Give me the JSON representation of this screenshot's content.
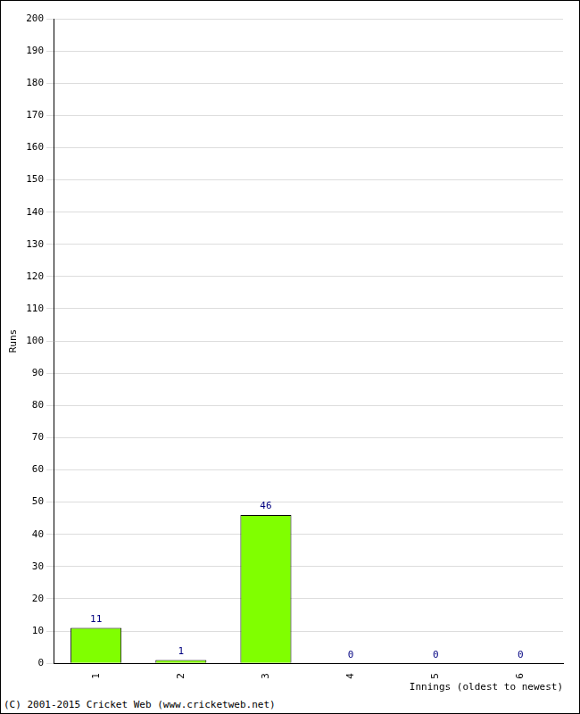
{
  "chart_data": {
    "type": "bar",
    "categories": [
      "1",
      "2",
      "3",
      "4",
      "5",
      "6"
    ],
    "values": [
      11,
      1,
      46,
      0,
      0,
      0
    ],
    "color": "#80ff00",
    "ylim": [
      0,
      200
    ],
    "yticks": [
      0,
      10,
      20,
      30,
      40,
      50,
      60,
      70,
      80,
      90,
      100,
      110,
      120,
      130,
      140,
      150,
      160,
      170,
      180,
      190,
      200
    ],
    "grid": true,
    "data_labels": true,
    "x_label": "Innings (oldest to newest)",
    "y_label": "Runs",
    "annotations": [
      "(C) 2001-2015 Cricket Web (www.cricketweb.net)"
    ]
  }
}
